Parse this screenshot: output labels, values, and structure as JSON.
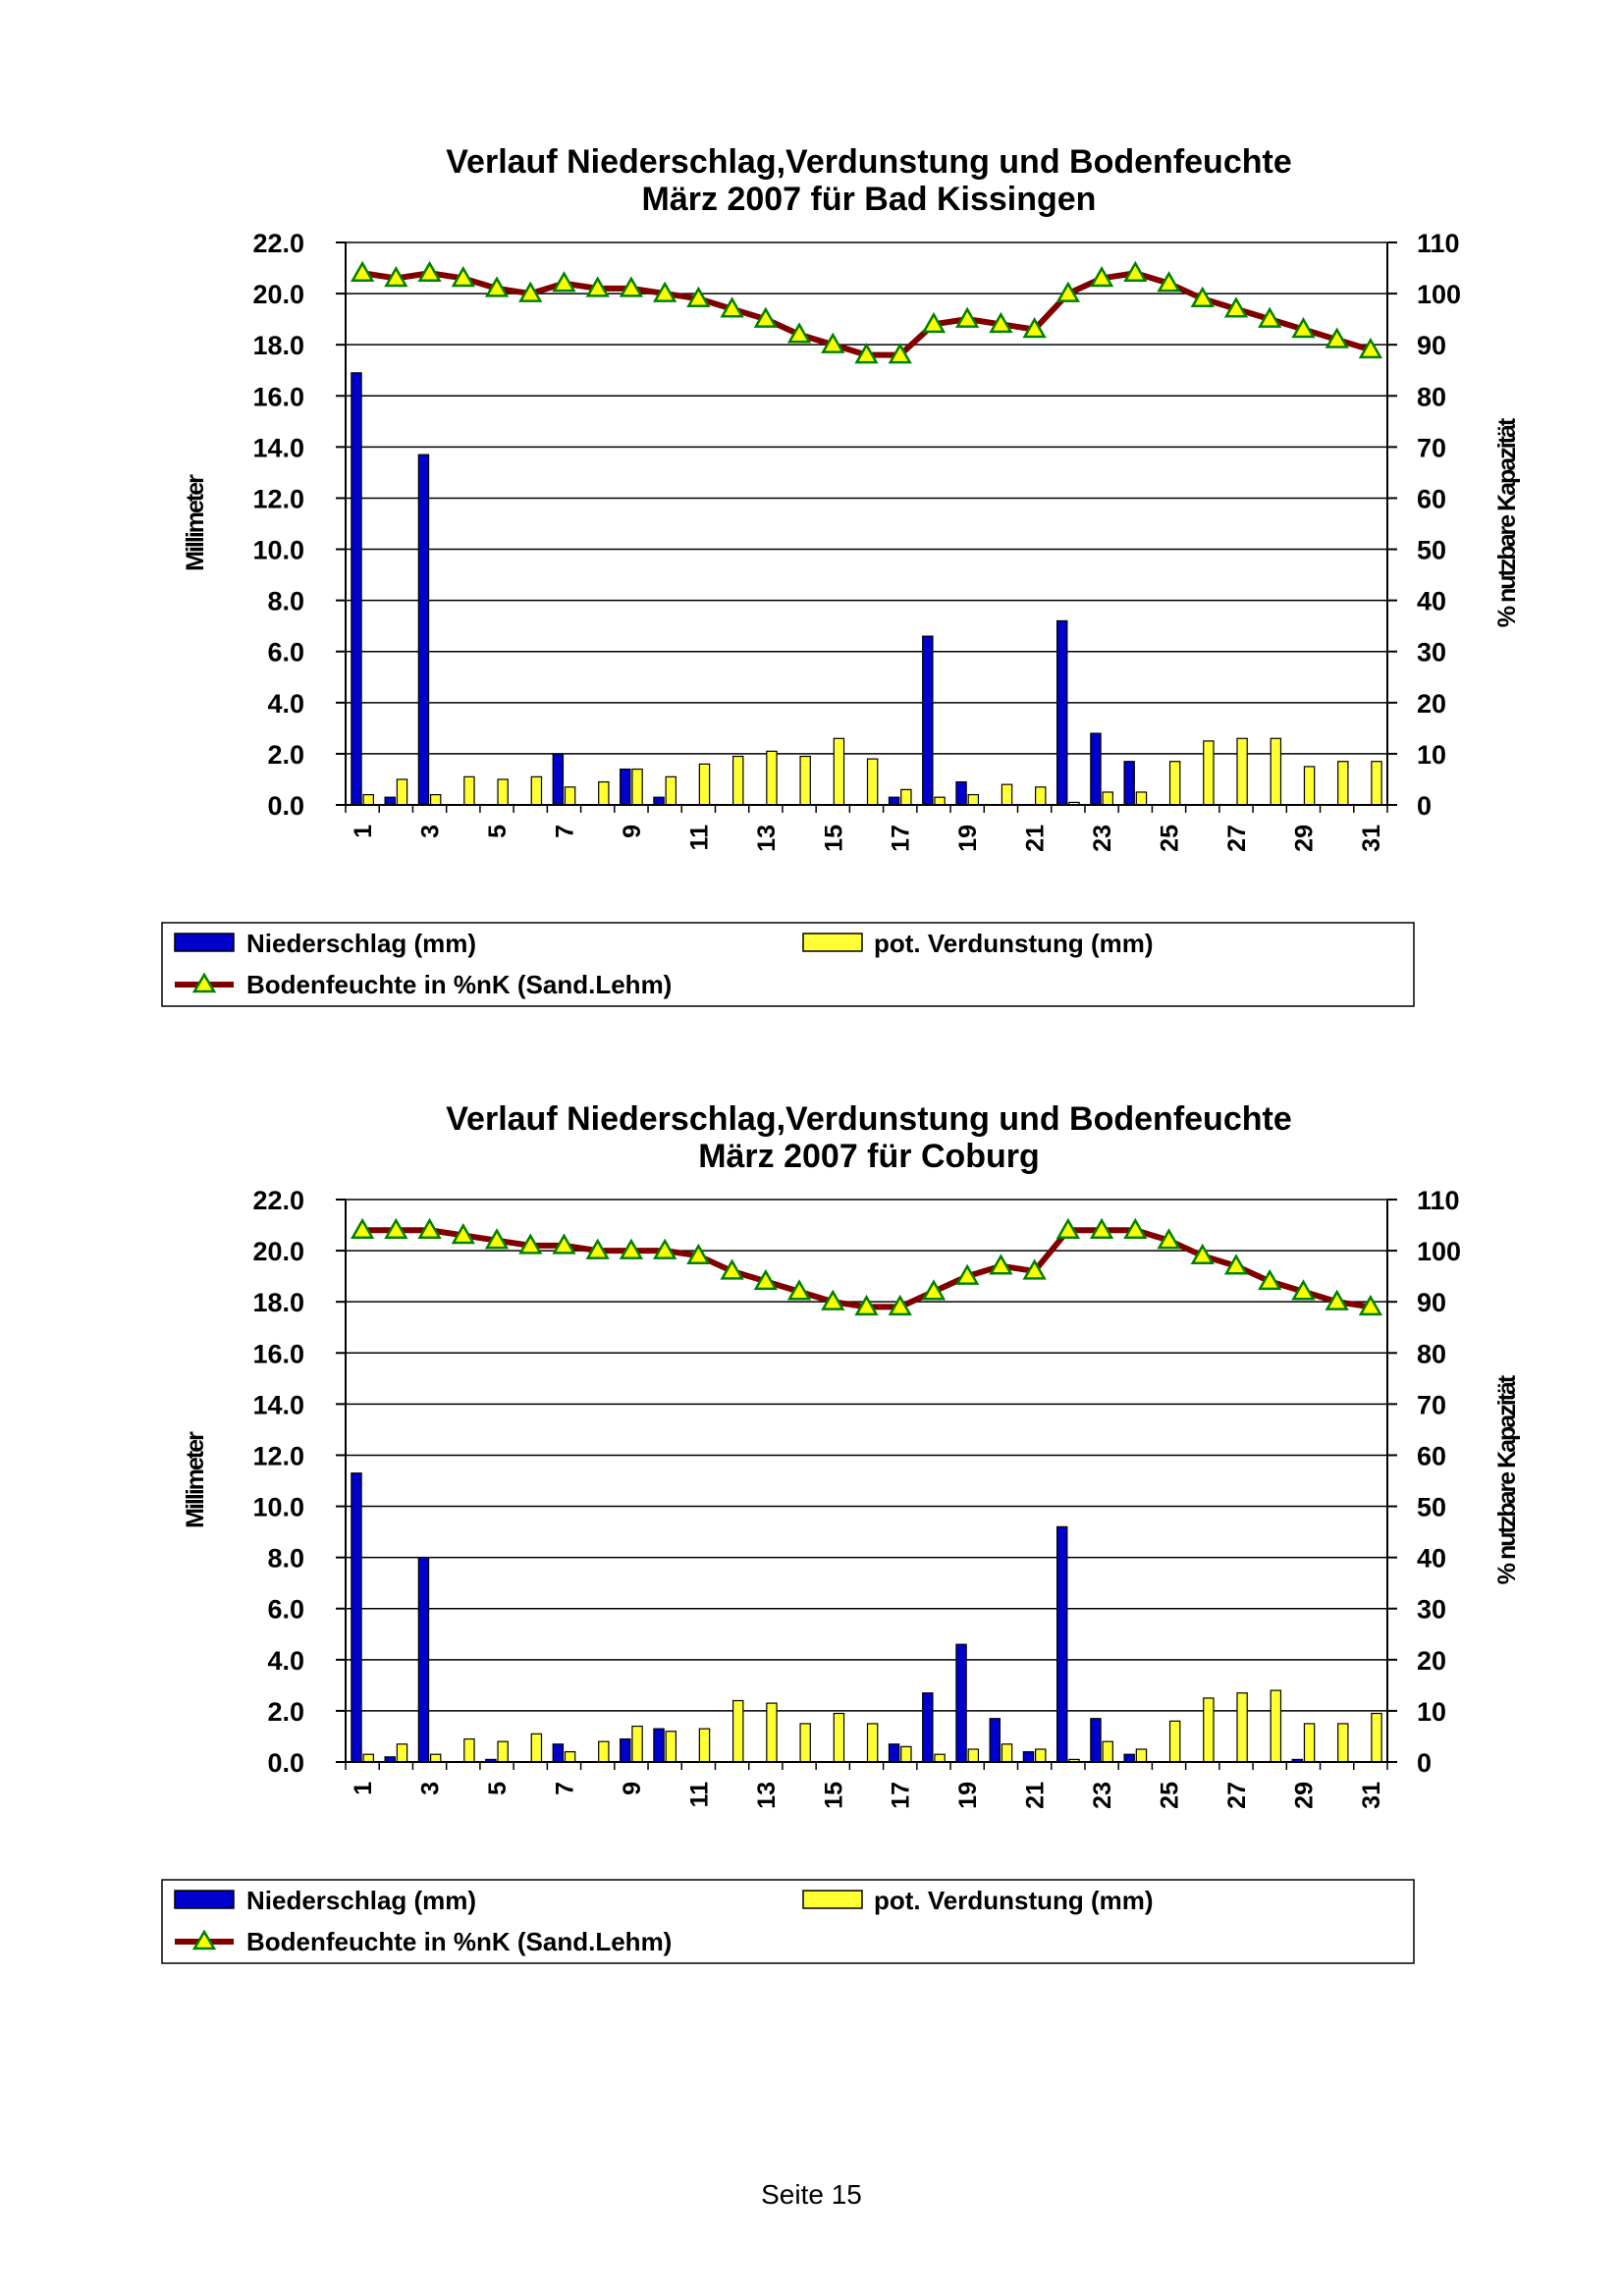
{
  "page": {
    "footer": "Seite 15"
  },
  "legend": {
    "precip": "Niederschlag (mm)",
    "evap": "pot. Verdunstung (mm)",
    "soil": "Bodenfeuchte in %nK (Sand.Lehm)"
  },
  "colors": {
    "precip": "#0000CC",
    "evap": "#FFFF33",
    "soil_line": "#800000",
    "soil_marker": "#FFFF00",
    "soil_marker_edge": "#008000",
    "grid": "#000000"
  },
  "chart_data": [
    {
      "type": "bar",
      "title_line1": "Verlauf Niederschlag,Verdunstung und Bodenfeuchte",
      "title_line2": "März  2007 für Bad Kissingen",
      "ylabel": "Millimeter",
      "y2label": "% nutzbare Kapazität",
      "ylim": [
        0,
        22
      ],
      "y2lim": [
        0,
        110
      ],
      "y_ticks": [
        "0.0",
        "2.0",
        "4.0",
        "6.0",
        "8.0",
        "10.0",
        "12.0",
        "14.0",
        "16.0",
        "18.0",
        "20.0",
        "22.0"
      ],
      "y2_ticks": [
        "0",
        "10",
        "20",
        "30",
        "40",
        "50",
        "60",
        "70",
        "80",
        "90",
        "100",
        "110"
      ],
      "x_tick_labels": [
        "1",
        "3",
        "5",
        "7",
        "9",
        "11",
        "13",
        "15",
        "17",
        "19",
        "21",
        "23",
        "25",
        "27",
        "29",
        "31"
      ],
      "x": [
        1,
        2,
        3,
        4,
        5,
        6,
        7,
        8,
        9,
        10,
        11,
        12,
        13,
        14,
        15,
        16,
        17,
        18,
        19,
        20,
        21,
        22,
        23,
        24,
        25,
        26,
        27,
        28,
        29,
        30,
        31
      ],
      "series": [
        {
          "name": "Niederschlag (mm)",
          "axis": "left",
          "kind": "bar",
          "values": [
            16.9,
            0.3,
            13.7,
            0,
            0,
            0,
            2.0,
            0,
            1.4,
            0.3,
            0,
            0,
            0,
            0,
            0,
            0,
            0.3,
            6.6,
            0.9,
            0,
            0,
            7.2,
            2.8,
            1.7,
            0,
            0,
            0,
            0,
            0,
            0,
            0
          ]
        },
        {
          "name": "pot. Verdunstung (mm)",
          "axis": "left",
          "kind": "bar",
          "values": [
            0.4,
            1.0,
            0.4,
            1.1,
            1.0,
            1.1,
            0.7,
            0.9,
            1.4,
            1.1,
            1.6,
            1.9,
            2.1,
            1.9,
            2.6,
            1.8,
            0.6,
            0.3,
            0.4,
            0.8,
            0.7,
            0.1,
            0.5,
            0.5,
            1.7,
            2.5,
            2.6,
            2.6,
            1.5,
            1.7,
            1.7
          ]
        },
        {
          "name": "Bodenfeuchte in %nK (Sand.Lehm)",
          "axis": "right",
          "kind": "line",
          "values": [
            104,
            103,
            104,
            103,
            101,
            100,
            102,
            101,
            101,
            100,
            99,
            97,
            95,
            92,
            90,
            88,
            88,
            94,
            95,
            94,
            93,
            100,
            103,
            104,
            102,
            99,
            97,
            95,
            93,
            91,
            89
          ]
        }
      ],
      "grid": true,
      "legend_position": "bottom"
    },
    {
      "type": "bar",
      "title_line1": "Verlauf Niederschlag,Verdunstung und Bodenfeuchte",
      "title_line2": "März 2007 für Coburg",
      "ylabel": "Millimeter",
      "y2label": "% nutzbare Kapazität",
      "ylim": [
        0,
        22
      ],
      "y2lim": [
        0,
        110
      ],
      "y_ticks": [
        "0.0",
        "2.0",
        "4.0",
        "6.0",
        "8.0",
        "10.0",
        "12.0",
        "14.0",
        "16.0",
        "18.0",
        "20.0",
        "22.0"
      ],
      "y2_ticks": [
        "0",
        "10",
        "20",
        "30",
        "40",
        "50",
        "60",
        "70",
        "80",
        "90",
        "100",
        "110"
      ],
      "x_tick_labels": [
        "1",
        "3",
        "5",
        "7",
        "9",
        "11",
        "13",
        "15",
        "17",
        "19",
        "21",
        "23",
        "25",
        "27",
        "29",
        "31"
      ],
      "x": [
        1,
        2,
        3,
        4,
        5,
        6,
        7,
        8,
        9,
        10,
        11,
        12,
        13,
        14,
        15,
        16,
        17,
        18,
        19,
        20,
        21,
        22,
        23,
        24,
        25,
        26,
        27,
        28,
        29,
        30,
        31
      ],
      "series": [
        {
          "name": "Niederschlag (mm)",
          "axis": "left",
          "kind": "bar",
          "values": [
            11.3,
            0.2,
            8.0,
            0,
            0.1,
            0,
            0.7,
            0,
            0.9,
            1.3,
            0,
            0,
            0,
            0,
            0,
            0,
            0.7,
            2.7,
            4.6,
            1.7,
            0.4,
            9.2,
            1.7,
            0.3,
            0,
            0,
            0,
            0,
            0.1,
            0,
            0
          ]
        },
        {
          "name": "pot. Verdunstung (mm)",
          "axis": "left",
          "kind": "bar",
          "values": [
            0.3,
            0.7,
            0.3,
            0.9,
            0.8,
            1.1,
            0.4,
            0.8,
            1.4,
            1.2,
            1.3,
            2.4,
            2.3,
            1.5,
            1.9,
            1.5,
            0.6,
            0.3,
            0.5,
            0.7,
            0.5,
            0.1,
            0.8,
            0.5,
            1.6,
            2.5,
            2.7,
            2.8,
            1.5,
            1.5,
            1.9
          ]
        },
        {
          "name": "Bodenfeuchte in %nK (Sand.Lehm)",
          "axis": "right",
          "kind": "line",
          "values": [
            104,
            104,
            104,
            103,
            102,
            101,
            101,
            100,
            100,
            100,
            99,
            96,
            94,
            92,
            90,
            89,
            89,
            92,
            95,
            97,
            96,
            104,
            104,
            104,
            102,
            99,
            97,
            94,
            92,
            90,
            89
          ]
        }
      ],
      "grid": true,
      "legend_position": "bottom"
    }
  ]
}
